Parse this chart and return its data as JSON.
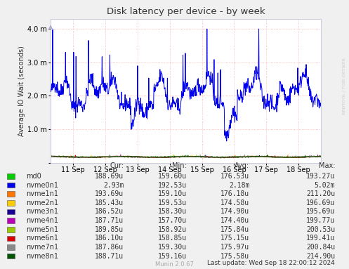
{
  "title": "Disk latency per device - by week",
  "ylabel": "Average IO Wait (seconds)",
  "background_color": "#f0f0f0",
  "plot_background": "#ffffff",
  "x_labels": [
    "11 Sep",
    "12 Sep",
    "13 Sep",
    "14 Sep",
    "15 Sep",
    "16 Sep",
    "17 Sep",
    "18 Sep"
  ],
  "x_positions": [
    1,
    2,
    3,
    4,
    5,
    6,
    7,
    8
  ],
  "yticks": [
    0.0,
    0.001,
    0.002,
    0.003,
    0.004
  ],
  "ylim": [
    0,
    0.0043
  ],
  "xlim": [
    0.3,
    8.7
  ],
  "devices": [
    "md0",
    "nvme0n1",
    "nvme1n1",
    "nvme2n1",
    "nvme3n1",
    "nvme4n1",
    "nvme5n1",
    "nvme6n1",
    "nvme7n1",
    "nvme8n1"
  ],
  "colors": [
    "#00cc00",
    "#0000ee",
    "#ff7700",
    "#ffcc00",
    "#1a0099",
    "#bb00bb",
    "#99cc00",
    "#dd0000",
    "#888888",
    "#005500"
  ],
  "cur": [
    "188.69u",
    "2.93m",
    "193.69u",
    "185.43u",
    "186.52u",
    "187.71u",
    "189.85u",
    "186.10u",
    "187.86u",
    "188.71u"
  ],
  "min": [
    "159.60u",
    "192.53u",
    "159.10u",
    "159.53u",
    "158.30u",
    "157.70u",
    "158.92u",
    "158.85u",
    "159.30u",
    "159.16u"
  ],
  "avg": [
    "176.53u",
    "2.18m",
    "176.18u",
    "174.58u",
    "174.90u",
    "174.40u",
    "175.84u",
    "175.15u",
    "175.97u",
    "175.58u"
  ],
  "max": [
    "193.27u",
    "5.02m",
    "211.20u",
    "196.69u",
    "195.69u",
    "199.77u",
    "200.53u",
    "199.41u",
    "200.84u",
    "214.90u"
  ],
  "watermark": "RRDTOOL / TOBI OETIKER",
  "last_update": "Last update: Wed Sep 18 22:00:12 2024",
  "munin_version": "Munin 2.0.67"
}
